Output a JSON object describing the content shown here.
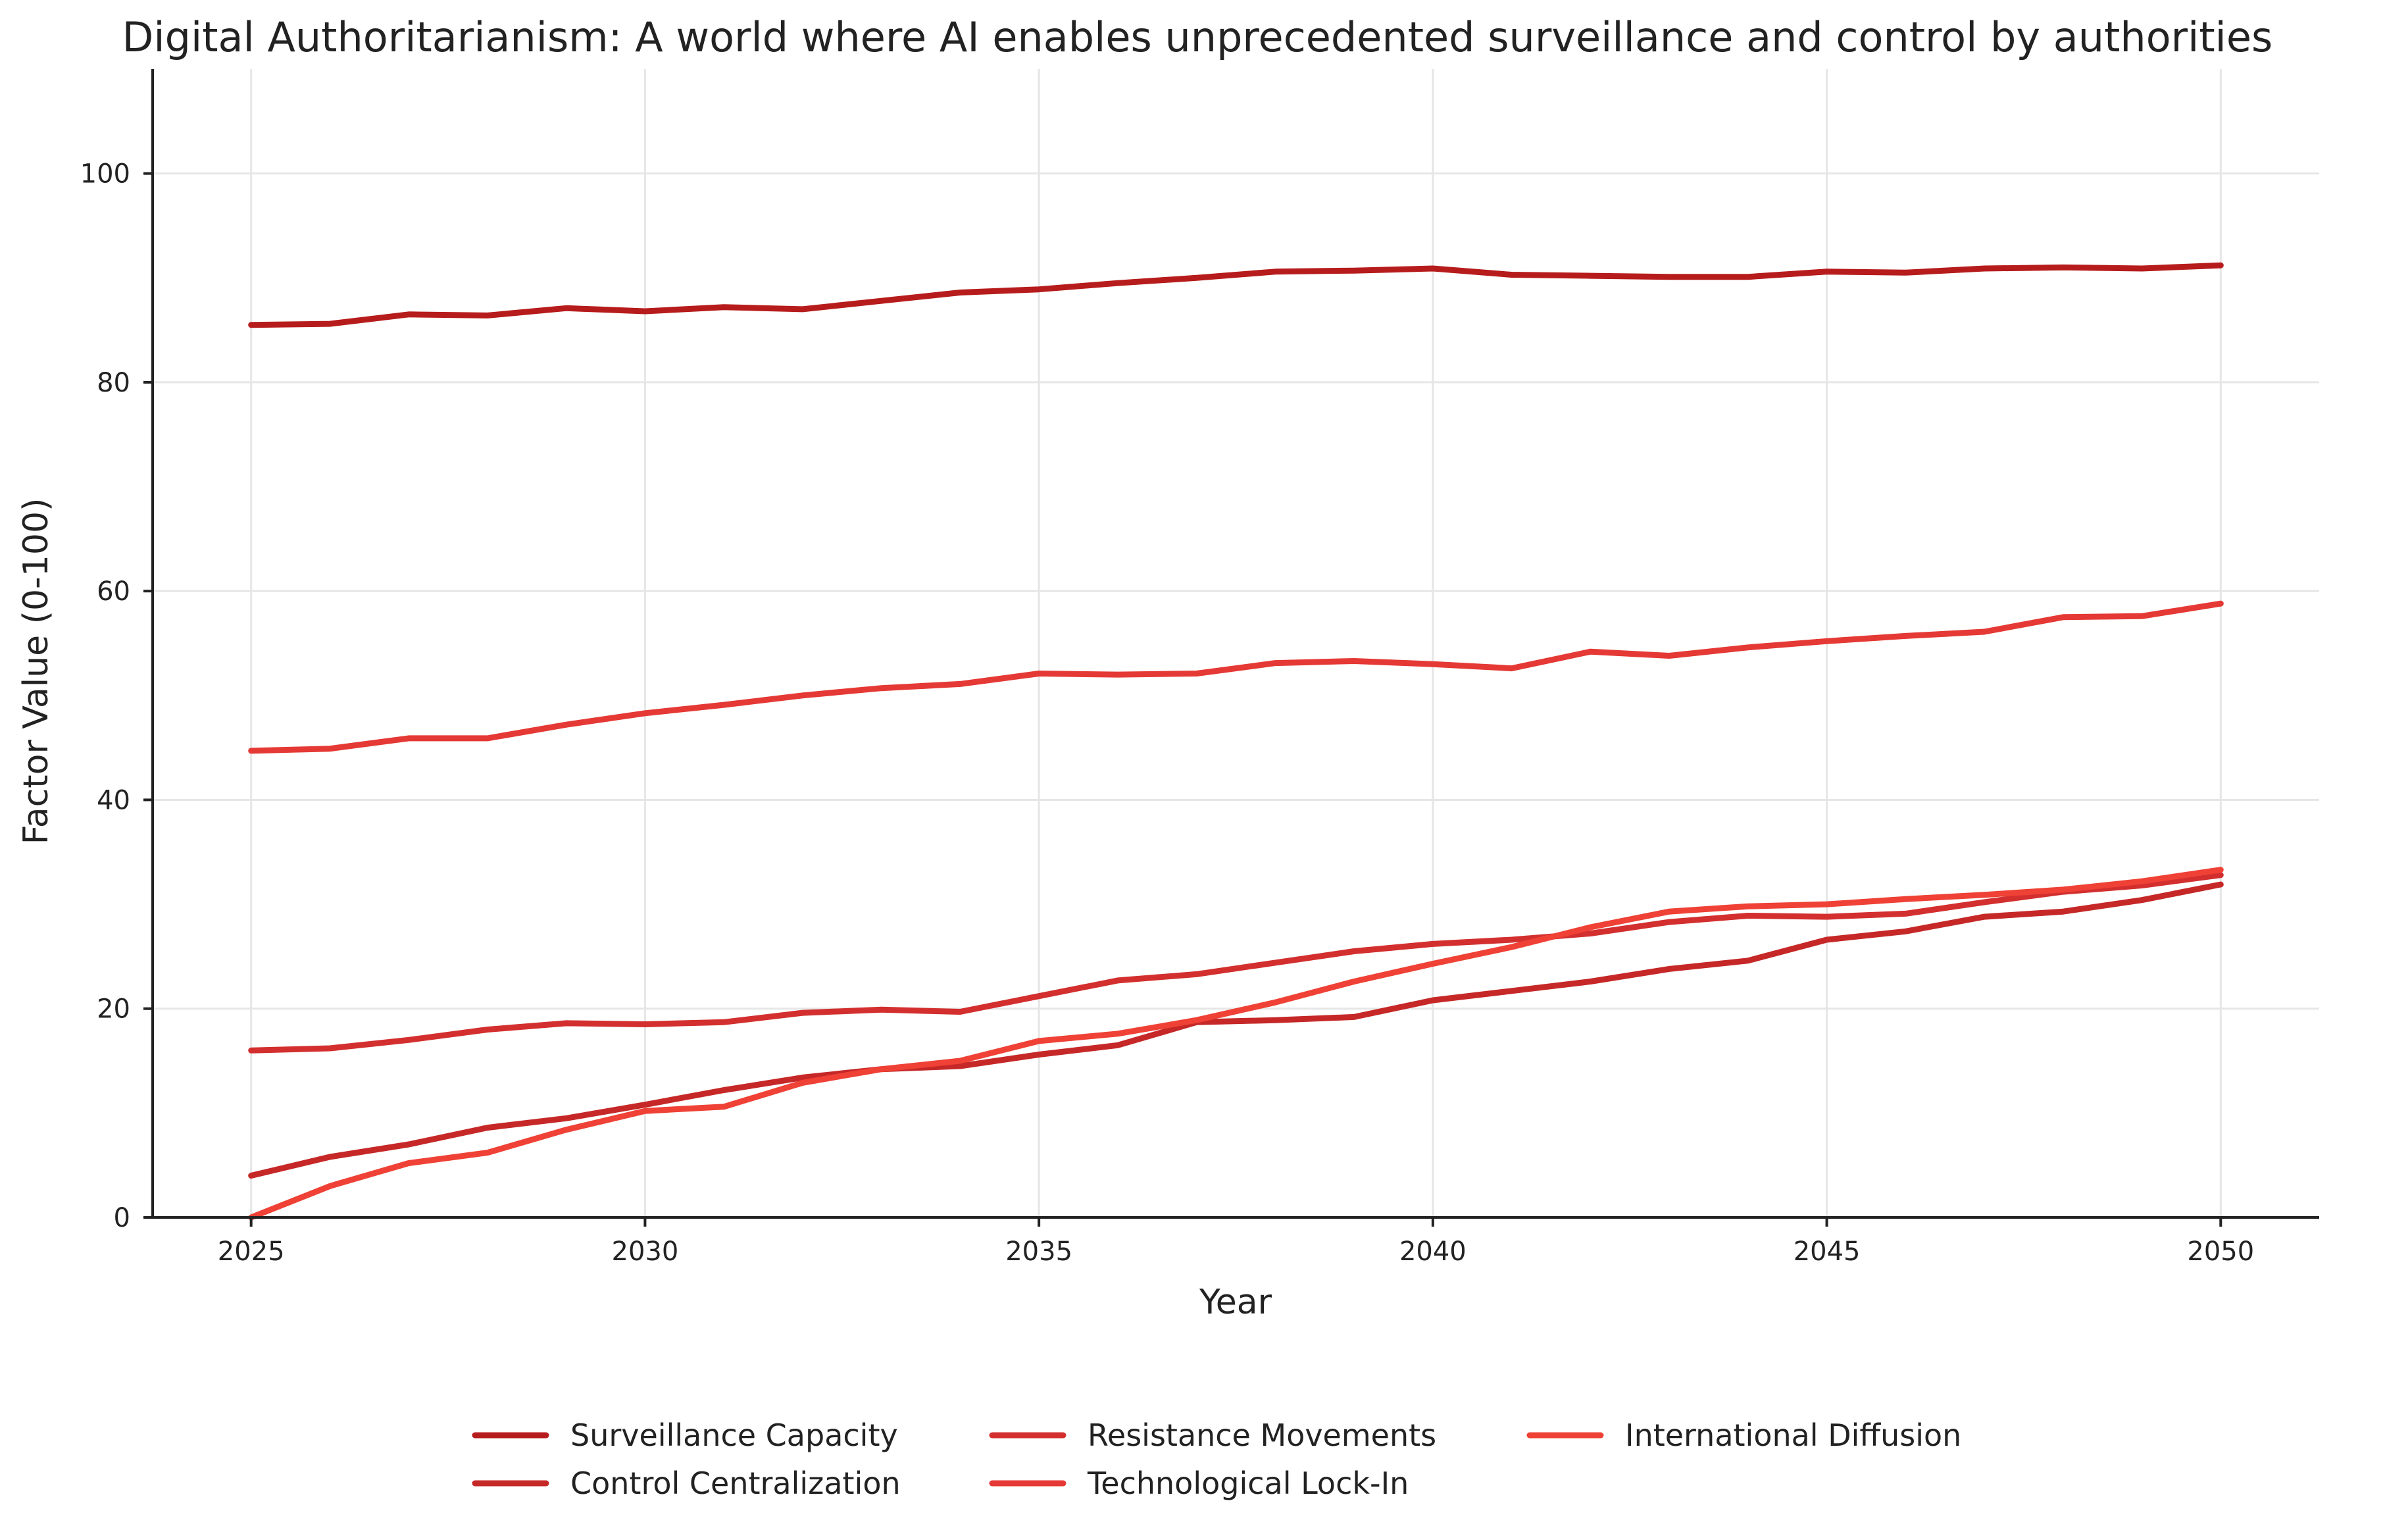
{
  "chart_data": {
    "type": "line",
    "title": "Digital Authoritarianism: A world where AI enables unprecedented surveillance and control by authorities",
    "xlabel": "Year",
    "ylabel": "Factor Value (0-100)",
    "xlim": [
      2023.75,
      2051.25
    ],
    "ylim": [
      0,
      110
    ],
    "xticks": [
      2025,
      2030,
      2035,
      2040,
      2045,
      2050
    ],
    "yticks": [
      0,
      20,
      40,
      60,
      80,
      100
    ],
    "grid": true,
    "legend_position": "bottom-center",
    "x": [
      2025,
      2026,
      2027,
      2028,
      2029,
      2030,
      2031,
      2032,
      2033,
      2034,
      2035,
      2036,
      2037,
      2038,
      2039,
      2040,
      2041,
      2042,
      2043,
      2044,
      2045,
      2046,
      2047,
      2048,
      2049,
      2050
    ],
    "series": [
      {
        "name": "Surveillance Capacity",
        "color": "#b71c1c",
        "values": [
          85.5,
          85.6,
          86.5,
          86.4,
          87.1,
          86.8,
          87.2,
          87.0,
          87.8,
          88.6,
          88.9,
          89.5,
          90.0,
          90.6,
          90.7,
          90.9,
          90.3,
          90.2,
          90.1,
          90.1,
          90.6,
          90.5,
          90.9,
          91.0,
          90.9,
          91.2
        ]
      },
      {
        "name": "Control Centralization",
        "color": "#c62828",
        "values": [
          4.0,
          5.8,
          7.0,
          8.6,
          9.5,
          10.8,
          12.2,
          13.4,
          14.2,
          14.5,
          15.6,
          16.5,
          18.7,
          18.9,
          19.2,
          20.8,
          21.7,
          22.6,
          23.8,
          24.6,
          26.6,
          27.4,
          28.8,
          29.3,
          30.4,
          31.9
        ]
      },
      {
        "name": "Resistance Movements",
        "color": "#d32f2f",
        "values": [
          16.0,
          16.2,
          17.0,
          18.0,
          18.6,
          18.5,
          18.7,
          19.6,
          19.9,
          19.7,
          21.2,
          22.7,
          23.3,
          24.4,
          25.5,
          26.2,
          26.6,
          27.2,
          28.3,
          28.9,
          28.8,
          29.1,
          30.2,
          31.2,
          31.8,
          32.8
        ]
      },
      {
        "name": "Technological Lock-In",
        "color": "#e53935",
        "values": [
          44.7,
          44.9,
          45.9,
          45.9,
          47.2,
          48.3,
          49.1,
          50.0,
          50.7,
          51.1,
          52.1,
          52.0,
          52.1,
          53.1,
          53.3,
          53.0,
          52.6,
          54.2,
          53.8,
          54.6,
          55.2,
          55.7,
          56.1,
          57.5,
          57.6,
          58.8
        ]
      },
      {
        "name": "International Diffusion",
        "color": "#ef4135",
        "values": [
          0.0,
          3.0,
          5.2,
          6.2,
          8.4,
          10.2,
          10.6,
          12.9,
          14.2,
          15.0,
          16.9,
          17.6,
          18.9,
          20.6,
          22.6,
          24.3,
          25.9,
          27.8,
          29.3,
          29.8,
          30.0,
          30.5,
          30.9,
          31.4,
          32.2,
          33.3
        ]
      }
    ]
  }
}
